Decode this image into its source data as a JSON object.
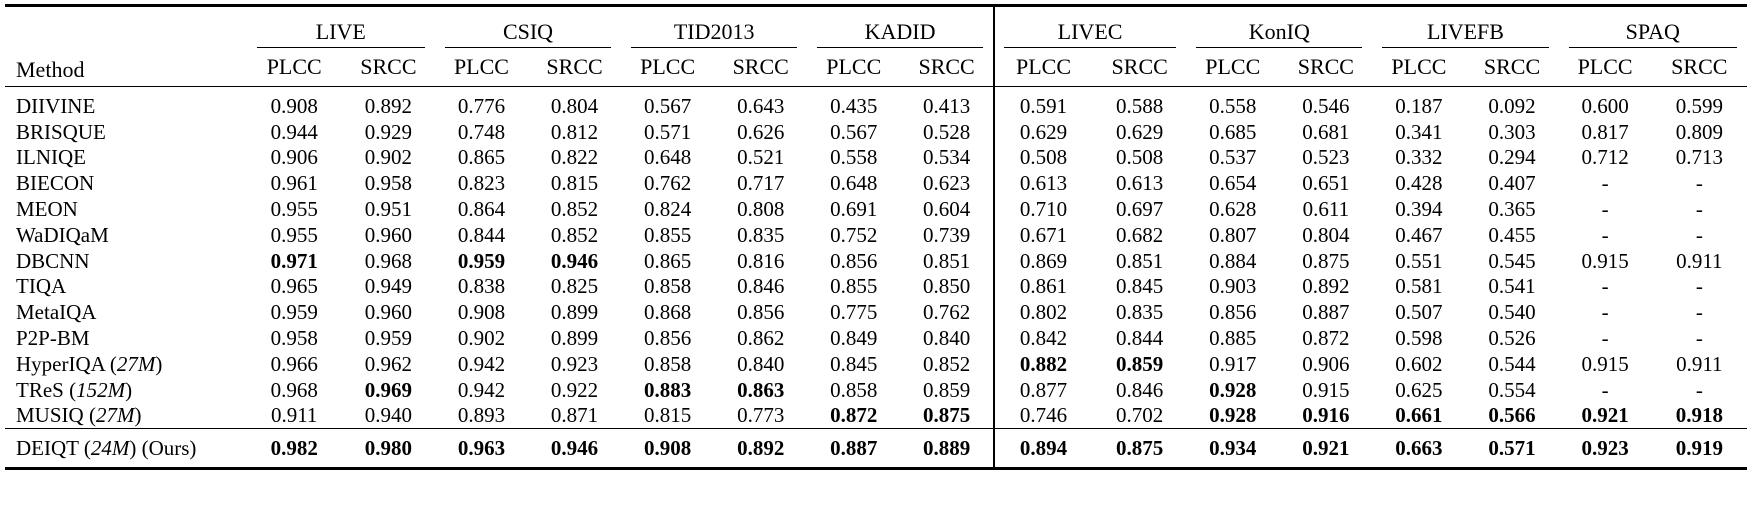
{
  "table": {
    "method_header": "Method",
    "datasets": [
      "LIVE",
      "CSIQ",
      "TID2013",
      "KADID",
      "LIVEC",
      "KonIQ",
      "LIVEFB",
      "SPAQ"
    ],
    "metrics": [
      "PLCC",
      "SRCC"
    ],
    "rows": [
      {
        "method": "DIIVINE",
        "size": "",
        "suffix": "",
        "values": [
          "0.908",
          "0.892",
          "0.776",
          "0.804",
          "0.567",
          "0.643",
          "0.435",
          "0.413",
          "0.591",
          "0.588",
          "0.558",
          "0.546",
          "0.187",
          "0.092",
          "0.600",
          "0.599"
        ],
        "bold": []
      },
      {
        "method": "BRISQUE",
        "size": "",
        "suffix": "",
        "values": [
          "0.944",
          "0.929",
          "0.748",
          "0.812",
          "0.571",
          "0.626",
          "0.567",
          "0.528",
          "0.629",
          "0.629",
          "0.685",
          "0.681",
          "0.341",
          "0.303",
          "0.817",
          "0.809"
        ],
        "bold": []
      },
      {
        "method": "ILNIQE",
        "size": "",
        "suffix": "",
        "values": [
          "0.906",
          "0.902",
          "0.865",
          "0.822",
          "0.648",
          "0.521",
          "0.558",
          "0.534",
          "0.508",
          "0.508",
          "0.537",
          "0.523",
          "0.332",
          "0.294",
          "0.712",
          "0.713"
        ],
        "bold": []
      },
      {
        "method": "BIECON",
        "size": "",
        "suffix": "",
        "values": [
          "0.961",
          "0.958",
          "0.823",
          "0.815",
          "0.762",
          "0.717",
          "0.648",
          "0.623",
          "0.613",
          "0.613",
          "0.654",
          "0.651",
          "0.428",
          "0.407",
          "-",
          "-"
        ],
        "bold": []
      },
      {
        "method": "MEON",
        "size": "",
        "suffix": "",
        "values": [
          "0.955",
          "0.951",
          "0.864",
          "0.852",
          "0.824",
          "0.808",
          "0.691",
          "0.604",
          "0.710",
          "0.697",
          "0.628",
          "0.611",
          "0.394",
          "0.365",
          "-",
          "-"
        ],
        "bold": []
      },
      {
        "method": "WaDIQaM",
        "size": "",
        "suffix": "",
        "values": [
          "0.955",
          "0.960",
          "0.844",
          "0.852",
          "0.855",
          "0.835",
          "0.752",
          "0.739",
          "0.671",
          "0.682",
          "0.807",
          "0.804",
          "0.467",
          "0.455",
          "-",
          "-"
        ],
        "bold": []
      },
      {
        "method": "DBCNN",
        "size": "",
        "suffix": "",
        "values": [
          "0.971",
          "0.968",
          "0.959",
          "0.946",
          "0.865",
          "0.816",
          "0.856",
          "0.851",
          "0.869",
          "0.851",
          "0.884",
          "0.875",
          "0.551",
          "0.545",
          "0.915",
          "0.911"
        ],
        "bold": [
          0,
          2,
          3
        ]
      },
      {
        "method": "TIQA",
        "size": "",
        "suffix": "",
        "values": [
          "0.965",
          "0.949",
          "0.838",
          "0.825",
          "0.858",
          "0.846",
          "0.855",
          "0.850",
          "0.861",
          "0.845",
          "0.903",
          "0.892",
          "0.581",
          "0.541",
          "-",
          "-"
        ],
        "bold": []
      },
      {
        "method": "MetaIQA",
        "size": "",
        "suffix": "",
        "values": [
          "0.959",
          "0.960",
          "0.908",
          "0.899",
          "0.868",
          "0.856",
          "0.775",
          "0.762",
          "0.802",
          "0.835",
          "0.856",
          "0.887",
          "0.507",
          "0.540",
          "-",
          "-"
        ],
        "bold": []
      },
      {
        "method": "P2P-BM",
        "size": "",
        "suffix": "",
        "values": [
          "0.958",
          "0.959",
          "0.902",
          "0.899",
          "0.856",
          "0.862",
          "0.849",
          "0.840",
          "0.842",
          "0.844",
          "0.885",
          "0.872",
          "0.598",
          "0.526",
          "-",
          "-"
        ],
        "bold": []
      },
      {
        "method": "HyperIQA",
        "size": "27M",
        "suffix": "",
        "values": [
          "0.966",
          "0.962",
          "0.942",
          "0.923",
          "0.858",
          "0.840",
          "0.845",
          "0.852",
          "0.882",
          "0.859",
          "0.917",
          "0.906",
          "0.602",
          "0.544",
          "0.915",
          "0.911"
        ],
        "bold": [
          8,
          9
        ]
      },
      {
        "method": "TReS",
        "size": "152M",
        "suffix": "",
        "values": [
          "0.968",
          "0.969",
          "0.942",
          "0.922",
          "0.883",
          "0.863",
          "0.858",
          "0.859",
          "0.877",
          "0.846",
          "0.928",
          "0.915",
          "0.625",
          "0.554",
          "-",
          "-"
        ],
        "bold": [
          1,
          4,
          5,
          10
        ]
      },
      {
        "method": "MUSIQ",
        "size": "27M",
        "suffix": "",
        "values": [
          "0.911",
          "0.940",
          "0.893",
          "0.871",
          "0.815",
          "0.773",
          "0.872",
          "0.875",
          "0.746",
          "0.702",
          "0.928",
          "0.916",
          "0.661",
          "0.566",
          "0.921",
          "0.918"
        ],
        "bold": [
          6,
          7,
          10,
          11,
          12,
          13,
          14,
          15
        ]
      }
    ],
    "ours": {
      "method": "DEIQT",
      "size": "24M",
      "suffix": "(Ours)",
      "values": [
        "0.982",
        "0.980",
        "0.963",
        "0.946",
        "0.908",
        "0.892",
        "0.887",
        "0.889",
        "0.894",
        "0.875",
        "0.934",
        "0.921",
        "0.663",
        "0.571",
        "0.923",
        "0.919"
      ],
      "bold": [
        0,
        1,
        2,
        3,
        4,
        5,
        6,
        7,
        8,
        9,
        10,
        11,
        12,
        13,
        14,
        15
      ]
    }
  }
}
